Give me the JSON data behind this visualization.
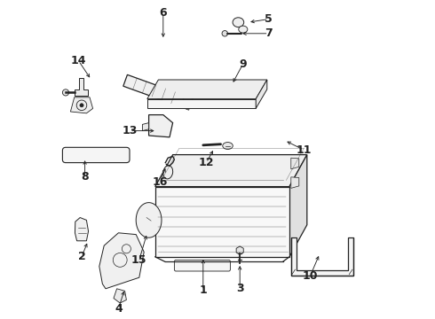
{
  "bg_color": "#ffffff",
  "line_color": "#222222",
  "fig_w": 4.9,
  "fig_h": 3.6,
  "dpi": 100,
  "label_configs": {
    "1": {
      "lp": [
        0.455,
        0.09
      ],
      "ae": [
        0.455,
        0.195
      ]
    },
    "2": {
      "lp": [
        0.075,
        0.195
      ],
      "ae": [
        0.095,
        0.245
      ]
    },
    "3": {
      "lp": [
        0.57,
        0.095
      ],
      "ae": [
        0.57,
        0.175
      ]
    },
    "4": {
      "lp": [
        0.19,
        0.032
      ],
      "ae": [
        0.21,
        0.095
      ]
    },
    "5": {
      "lp": [
        0.66,
        0.94
      ],
      "ae": [
        0.595,
        0.93
      ]
    },
    "6": {
      "lp": [
        0.33,
        0.96
      ],
      "ae": [
        0.33,
        0.875
      ]
    },
    "7": {
      "lp": [
        0.66,
        0.895
      ],
      "ae": [
        0.57,
        0.895
      ]
    },
    "8": {
      "lp": [
        0.085,
        0.445
      ],
      "ae": [
        0.085,
        0.505
      ]
    },
    "9": {
      "lp": [
        0.58,
        0.8
      ],
      "ae": [
        0.545,
        0.735
      ]
    },
    "10": {
      "lp": [
        0.79,
        0.135
      ],
      "ae": [
        0.82,
        0.205
      ]
    },
    "11": {
      "lp": [
        0.77,
        0.53
      ],
      "ae": [
        0.71,
        0.56
      ]
    },
    "12": {
      "lp": [
        0.465,
        0.49
      ],
      "ae": [
        0.49,
        0.535
      ]
    },
    "13": {
      "lp": [
        0.225,
        0.59
      ],
      "ae": [
        0.31,
        0.59
      ]
    },
    "14": {
      "lp": [
        0.065,
        0.81
      ],
      "ae": [
        0.105,
        0.75
      ]
    },
    "15": {
      "lp": [
        0.255,
        0.185
      ],
      "ae": [
        0.28,
        0.27
      ]
    },
    "16": {
      "lp": [
        0.32,
        0.43
      ],
      "ae": [
        0.34,
        0.48
      ]
    }
  }
}
